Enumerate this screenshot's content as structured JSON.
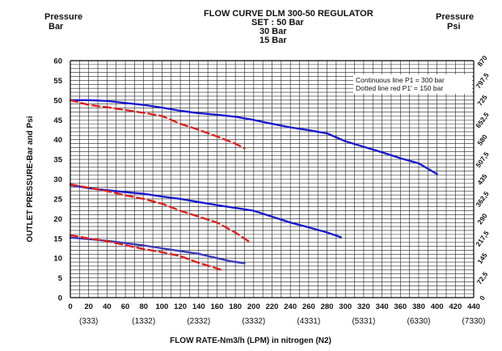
{
  "chart_data": {
    "type": "line",
    "title_lines": [
      "FLOW CURVE DLM 300-50 REGULATOR",
      "SET : 50 Bar",
      "30 Bar",
      "15 Bar"
    ],
    "left_header": [
      "Pressure",
      "Bar"
    ],
    "right_header": [
      "Pressure",
      "Psi"
    ],
    "ylabel": "OUTLET PRESSURE-Bar and Psi",
    "xlabel": "FLOW RATE-Nm3/h (LPM) in nitrogen (N2)",
    "xlim": [
      0,
      440
    ],
    "ylim": [
      0,
      60
    ],
    "x_ticks": [
      "0",
      "20",
      "40",
      "60",
      "80",
      "100",
      "120",
      "140",
      "160",
      "180",
      "200",
      "220",
      "240",
      "260",
      "280",
      "300",
      "320",
      "340",
      "360",
      "380",
      "400",
      "420",
      "440"
    ],
    "y_ticks": [
      "0",
      "5",
      "10",
      "15",
      "20",
      "25",
      "30",
      "35",
      "40",
      "45",
      "50",
      "55",
      "60"
    ],
    "y_ticks_right": [
      "0",
      "72,5",
      "145",
      "217,5",
      "290",
      "362,5",
      "435",
      "507,5",
      "580",
      "652,5",
      "725",
      "797,5",
      "870"
    ],
    "lpm_labels": [
      {
        "x": 20,
        "text": "(333)"
      },
      {
        "x": 80,
        "text": "(1332)"
      },
      {
        "x": 140,
        "text": "(2332)"
      },
      {
        "x": 200,
        "text": "(3332)"
      },
      {
        "x": 260,
        "text": "(4331)"
      },
      {
        "x": 320,
        "text": "(5331)"
      },
      {
        "x": 380,
        "text": "(6330)"
      },
      {
        "x": 440,
        "text": "(7330)"
      }
    ],
    "legend": [
      "Continuous line P1 = 300 bar",
      "Dotted line red  P1' = 150 bar"
    ],
    "grid": true,
    "series": [
      {
        "style": "solid",
        "color": "#1a1ad0",
        "x": [
          0,
          20,
          40,
          60,
          80,
          100,
          120,
          140,
          160,
          180,
          200,
          220,
          240,
          260,
          280,
          300,
          320,
          340,
          360,
          380,
          400
        ],
        "y": [
          50,
          50,
          49.8,
          49.3,
          48.8,
          48.1,
          47.3,
          46.7,
          46.3,
          45.8,
          45.0,
          44.0,
          43.1,
          42.4,
          41.6,
          39.6,
          38.2,
          36.8,
          35.3,
          34.0,
          31.3
        ]
      },
      {
        "style": "dashed",
        "color": "#e02020",
        "x": [
          0,
          20,
          40,
          60,
          80,
          100,
          120,
          140,
          160,
          180,
          190
        ],
        "y": [
          50,
          48.8,
          48.2,
          47.5,
          46.8,
          46.0,
          44.0,
          42.5,
          40.8,
          39.0,
          37.8
        ]
      },
      {
        "style": "solid",
        "color": "#1a1ad0",
        "x": [
          0,
          20,
          40,
          60,
          80,
          100,
          120,
          140,
          160,
          180,
          200,
          220,
          240,
          260,
          280,
          295
        ],
        "y": [
          28.5,
          27.7,
          27.2,
          26.7,
          26.3,
          25.6,
          25.0,
          24.2,
          23.4,
          22.7,
          22.0,
          20.5,
          19.0,
          17.8,
          16.5,
          15.3
        ]
      },
      {
        "style": "dashed",
        "color": "#e02020",
        "x": [
          0,
          20,
          40,
          60,
          80,
          100,
          120,
          140,
          160,
          180,
          195
        ],
        "y": [
          28.7,
          27.8,
          27.0,
          25.9,
          25.0,
          23.8,
          22.0,
          20.5,
          19.0,
          16.5,
          14.2
        ]
      },
      {
        "style": "solid",
        "color": "#3a3ab8",
        "x": [
          0,
          20,
          40,
          60,
          80,
          100,
          120,
          140,
          160,
          175,
          190
        ],
        "y": [
          15.2,
          14.8,
          14.4,
          13.8,
          13.2,
          12.5,
          11.8,
          11.1,
          10.0,
          9.2,
          8.7
        ]
      },
      {
        "style": "dashed",
        "color": "#e02020",
        "x": [
          0,
          20,
          40,
          60,
          80,
          100,
          120,
          140,
          160,
          165
        ],
        "y": [
          15.8,
          15.0,
          14.3,
          13.3,
          12.3,
          11.5,
          10.5,
          8.8,
          7.4,
          7.0
        ]
      }
    ]
  }
}
